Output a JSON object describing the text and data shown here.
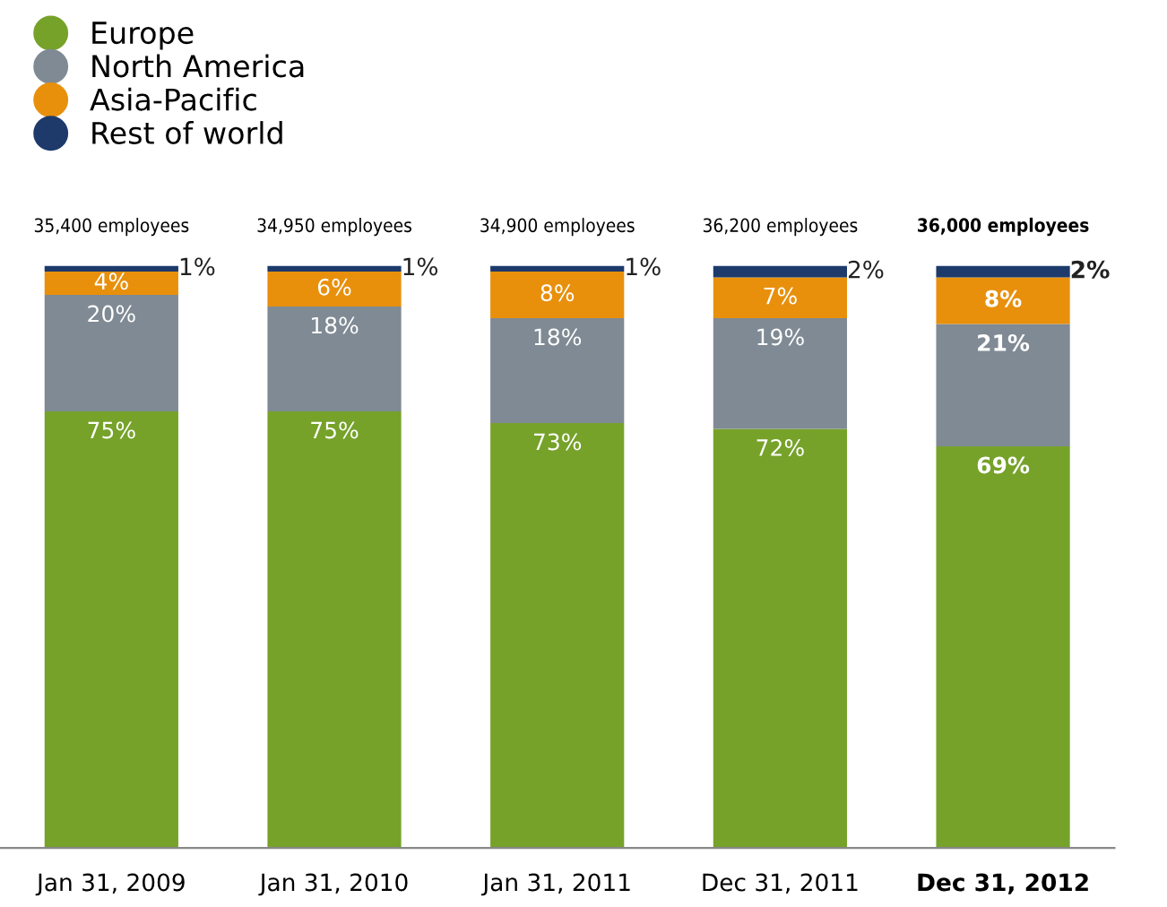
{
  "chart_data": {
    "type": "bar",
    "stacked": true,
    "categories": [
      "Jan 31, 2009",
      "Jan 31, 2010",
      "Jan 31, 2011",
      "Dec 31, 2011",
      "Dec 31, 2012"
    ],
    "series": [
      {
        "name": "Europe",
        "color": "#76a22a",
        "values": [
          75,
          75,
          73,
          72,
          69
        ],
        "value_labels": [
          "75%",
          "75%",
          "73%",
          "72%",
          "69%"
        ]
      },
      {
        "name": "North America",
        "color": "#7f8a94",
        "values": [
          20,
          18,
          18,
          19,
          21
        ],
        "value_labels": [
          "20%",
          "18%",
          "18%",
          "19%",
          "21%"
        ]
      },
      {
        "name": "Asia-Pacific",
        "color": "#e8900c",
        "values": [
          4,
          6,
          8,
          7,
          8
        ],
        "value_labels": [
          "4%",
          "6%",
          "8%",
          "7%",
          "8%"
        ]
      },
      {
        "name": "Rest of world",
        "color": "#1d3a6b",
        "values": [
          1,
          1,
          1,
          2,
          2
        ],
        "value_labels": [
          "1%",
          "1%",
          "1%",
          "2%",
          "2%"
        ]
      }
    ],
    "tick_labels": "x",
    "legend": "top left",
    "annotations": [
      {
        "text": "35,400 employees",
        "x": "Jan 31, 2009",
        "y": 100
      },
      {
        "text": "34,950 employees",
        "x": "Jan 31, 2010",
        "y": 100
      },
      {
        "text": "34,900 employees",
        "x": "Jan 31, 2011",
        "y": 100
      },
      {
        "text": "36,200 employees",
        "x": "Dec 31, 2011",
        "y": 100
      },
      {
        "text": "36,000 employees",
        "x": "Dec 31, 2012",
        "y": 100
      }
    ]
  }
}
